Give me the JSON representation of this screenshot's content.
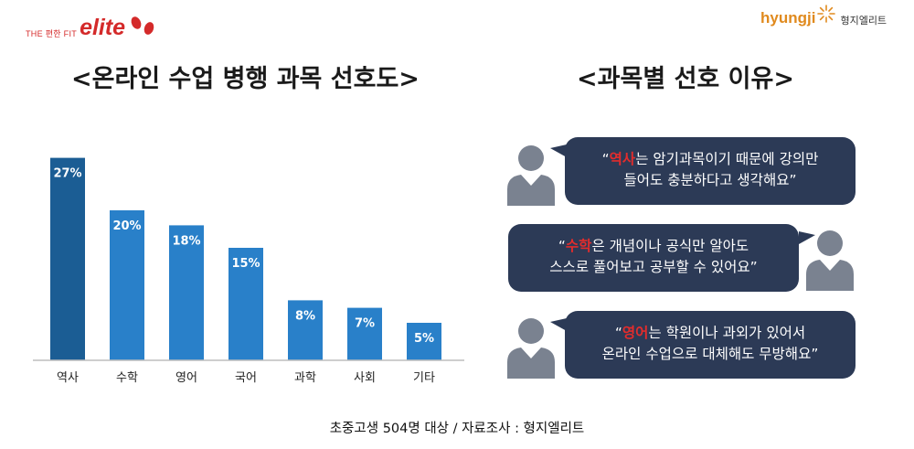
{
  "logos": {
    "left_tag": "THE 편한 FIT",
    "left_word": "elite",
    "right_brand": "hyungji",
    "right_kr": "형지엘리트"
  },
  "headings": {
    "left": "<온라인 수업 병행 과목 선호도>",
    "right": "<과목별 선호 이유>"
  },
  "chart_data": {
    "type": "bar",
    "title": "<온라인 수업 병행 과목 선호도>",
    "categories": [
      "역사",
      "수학",
      "영어",
      "국어",
      "과학",
      "사회",
      "기타"
    ],
    "values": [
      27,
      20,
      18,
      15,
      8,
      7,
      5
    ],
    "value_labels": [
      "27%",
      "20%",
      "18%",
      "15%",
      "8%",
      "7%",
      "5%"
    ],
    "unit": "%",
    "ylim": [
      0,
      30
    ],
    "colors": {
      "first_bar": "#1b5d94",
      "bars": "#2980c9",
      "axis": "#bdbdbd"
    },
    "grid": false,
    "legend": "none"
  },
  "reasons": [
    {
      "highlight": "역사",
      "rest_line1": "는 암기과목이기 때문에 강의만",
      "line2": "들어도 충분하다고 생각해요”",
      "avatar_side": "left"
    },
    {
      "highlight": "수학",
      "rest_line1": "은 개념이나 공식만 알아도",
      "line2": "스스로 풀어보고 공부할 수 있어요”",
      "avatar_side": "right"
    },
    {
      "highlight": "영어",
      "rest_line1": "는 학원이나 과외가 있어서",
      "line2": "온라인 수업으로 대체해도 무방해요”",
      "avatar_side": "left"
    }
  ],
  "open_quote": "“",
  "colors": {
    "bubble": "#2c3a56",
    "highlight": "#e32c2c",
    "avatar": "#7a8290"
  },
  "footer": "초중고생 504명 대상 / 자료조사 : 형지엘리트"
}
